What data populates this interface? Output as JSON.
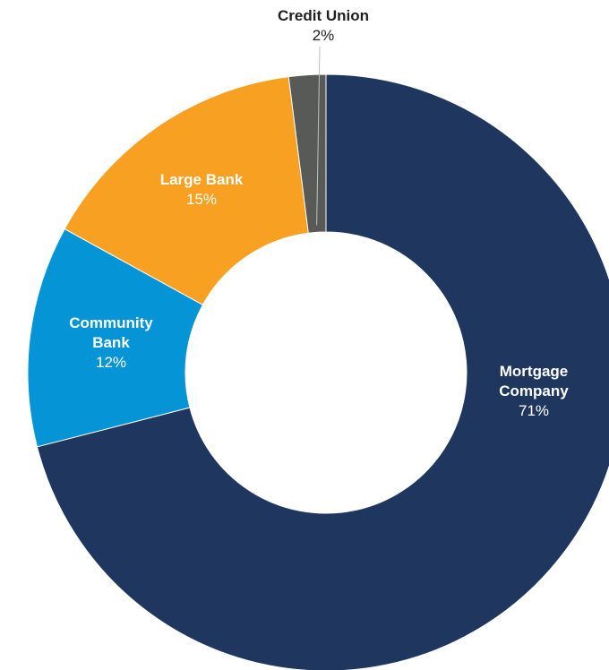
{
  "chart_data": {
    "type": "pie",
    "variant": "donut",
    "slices": [
      {
        "name_lines": [
          "Mortgage",
          "Company"
        ],
        "value": 71,
        "value_label": "71%",
        "color": "#1f365e",
        "label_color": "#ffffff",
        "label_placement": "inside"
      },
      {
        "name_lines": [
          "Community",
          "Bank"
        ],
        "value": 12,
        "value_label": "12%",
        "color": "#0595d6",
        "label_color": "#ffffff",
        "label_placement": "inside"
      },
      {
        "name_lines": [
          "Large Bank"
        ],
        "value": 15,
        "value_label": "15%",
        "color": "#f7a022",
        "label_color": "#ffffff",
        "label_placement": "inside"
      },
      {
        "name_lines": [
          "Credit Union"
        ],
        "value": 2,
        "value_label": "2%",
        "color": "#585a58",
        "label_color": "#1f1f1f",
        "label_placement": "outside-top"
      }
    ]
  }
}
